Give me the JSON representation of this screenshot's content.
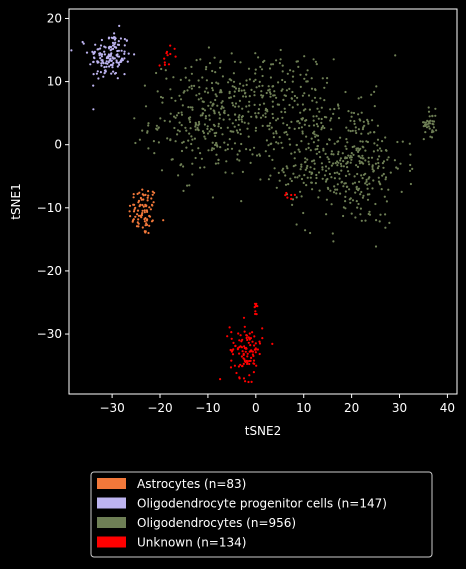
{
  "chart_data": {
    "type": "scatter",
    "xlabel": "tSNE2",
    "ylabel": "tSNE1",
    "xlim": [
      -39,
      42
    ],
    "ylim": [
      -39.5,
      21.5
    ],
    "xticks": [
      -30,
      -20,
      -10,
      0,
      10,
      20,
      30,
      40
    ],
    "yticks": [
      20,
      10,
      0,
      -10,
      -20,
      -30
    ],
    "xtick_labels": [
      "−30",
      "−20",
      "−10",
      "0",
      "10",
      "20",
      "30",
      "40"
    ],
    "ytick_labels": [
      "20",
      "10",
      "0",
      "−10",
      "−20",
      "−30"
    ],
    "grid": false,
    "legend_placement": "bottom-center",
    "series": [
      {
        "name": "Astrocytes (n=83)",
        "color": "#f2783a",
        "clusters": [
          {
            "n": 83,
            "cx": -23.5,
            "cy": -10.5,
            "sx": 1.5,
            "sy": 2.0
          }
        ]
      },
      {
        "name": "Oligodendrocyte progenitor cells (n=147)",
        "color": "#bdb4f0",
        "clusters": [
          {
            "n": 147,
            "cx": -30.5,
            "cy": 14,
            "sx": 2.2,
            "sy": 2.0
          }
        ]
      },
      {
        "name": "Oligodendrocytes (n=956)",
        "color": "#6e7f55",
        "clusters": [
          {
            "n": 330,
            "cx": -9,
            "cy": 4,
            "sx": 6.5,
            "sy": 4.5
          },
          {
            "n": 150,
            "cx": 4,
            "cy": 8,
            "sx": 6.0,
            "sy": 3.5
          },
          {
            "n": 330,
            "cx": 20,
            "cy": -3,
            "sx": 5.5,
            "sy": 5.0
          },
          {
            "n": 110,
            "cx": 10,
            "cy": -1,
            "sx": 4.0,
            "sy": 4.0
          },
          {
            "n": 36,
            "cx": 36.5,
            "cy": 3.5,
            "sx": 0.7,
            "sy": 1.1
          }
        ]
      },
      {
        "name": "Unknown (n=134)",
        "color": "#ff0000",
        "clusters": [
          {
            "n": 108,
            "cx": -2,
            "cy": -32.5,
            "sx": 1.7,
            "sy": 2.2
          },
          {
            "n": 8,
            "cx": 0,
            "cy": -25.5,
            "sx": 0.2,
            "sy": 0.5
          },
          {
            "n": 12,
            "cx": -18,
            "cy": 14.5,
            "sx": 1.2,
            "sy": 0.8
          },
          {
            "n": 6,
            "cx": 7,
            "cy": -8.5,
            "sx": 0.6,
            "sy": 0.4
          }
        ]
      }
    ]
  }
}
